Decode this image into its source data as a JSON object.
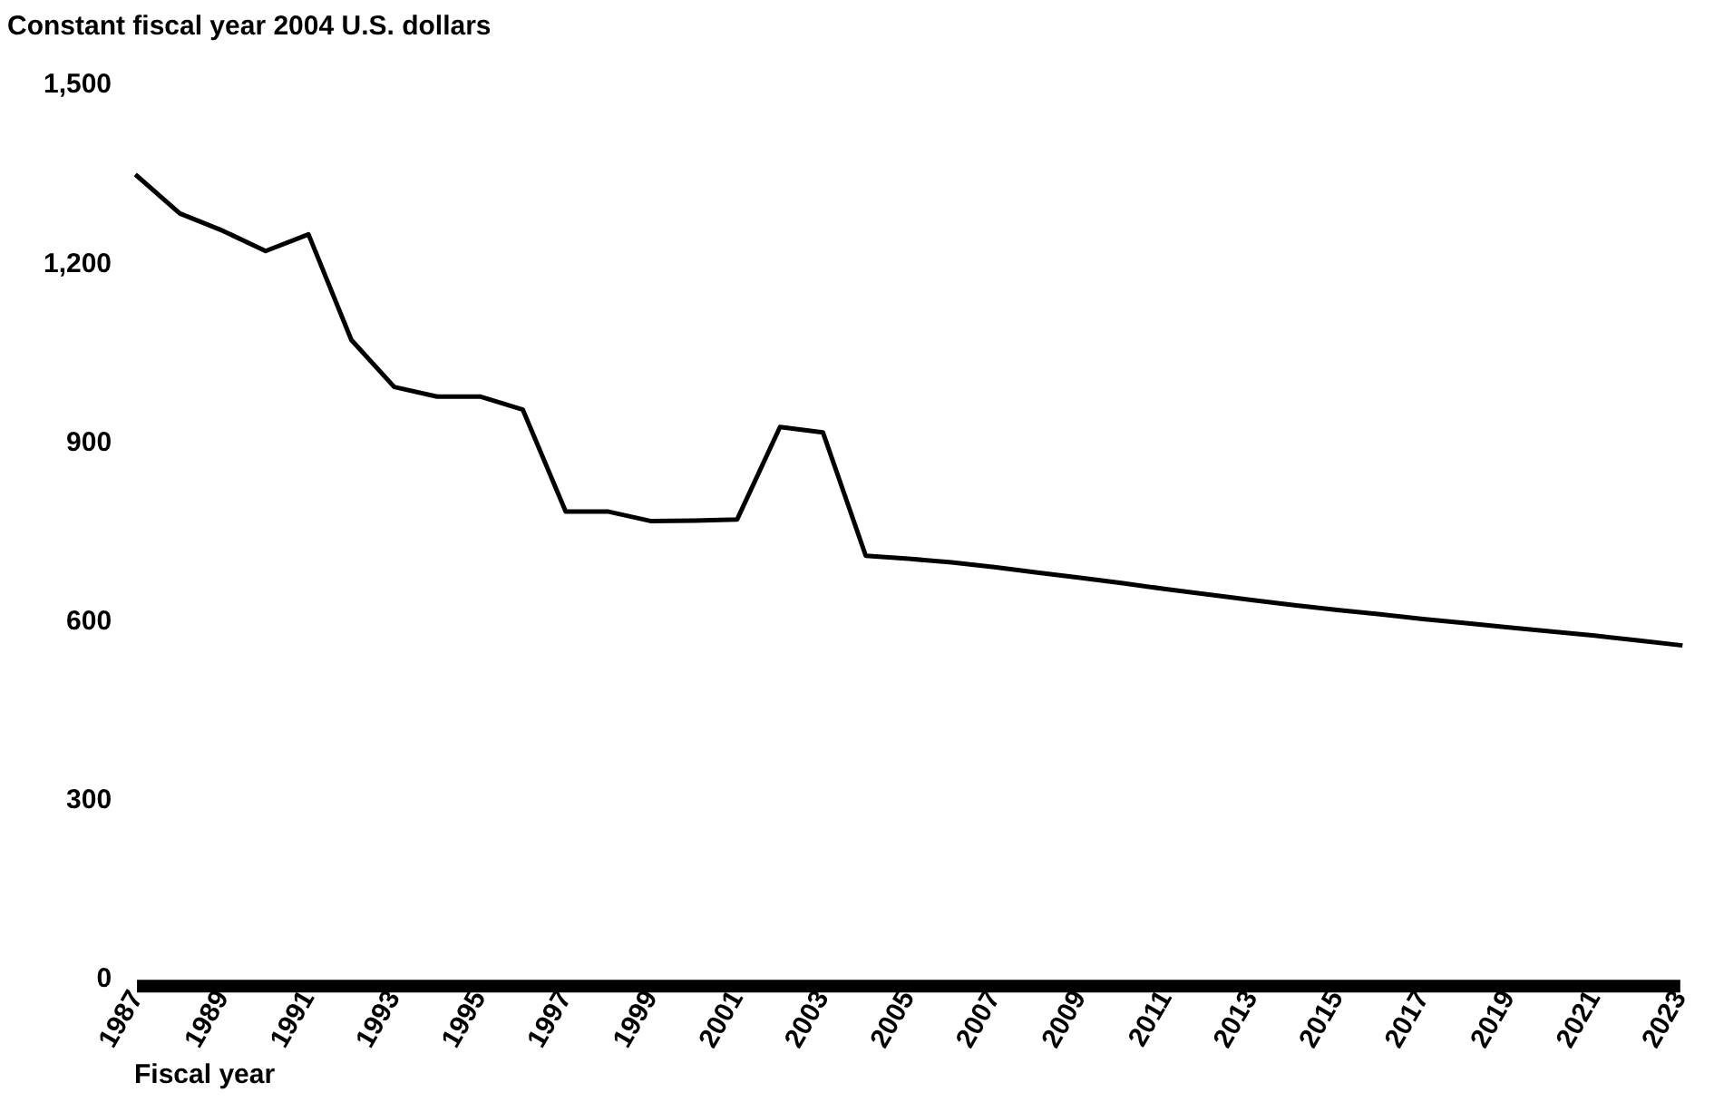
{
  "chart_data": {
    "type": "line",
    "ylabel": "Constant fiscal year 2004 U.S. dollars",
    "xlabel": "Fiscal year",
    "x": [
      1987,
      1988,
      1989,
      1990,
      1991,
      1992,
      1993,
      1994,
      1995,
      1996,
      1997,
      1998,
      1999,
      2000,
      2001,
      2002,
      2003,
      2004,
      2005,
      2006,
      2007,
      2008,
      2009,
      2010,
      2011,
      2012,
      2013,
      2014,
      2015,
      2016,
      2017,
      2018,
      2019,
      2020,
      2021,
      2022,
      2023
    ],
    "series": [
      {
        "color": "#000000",
        "values": [
          1348,
          1285,
          1256,
          1222,
          1250,
          1073,
          994,
          978,
          978,
          956,
          785,
          785,
          769,
          770,
          772,
          927,
          918,
          711,
          706,
          700,
          692,
          683,
          674,
          665,
          655,
          646,
          637,
          628,
          620,
          613,
          605,
          598,
          591,
          584,
          577,
          569,
          561
        ]
      }
    ],
    "xlim": [
      1987,
      2023
    ],
    "xticks": [
      1987,
      1989,
      1991,
      1993,
      1995,
      1997,
      1999,
      2001,
      2003,
      2005,
      2007,
      2009,
      2011,
      2013,
      2015,
      2017,
      2019,
      2021,
      2023
    ],
    "ylim": [
      0,
      1500
    ],
    "yticks": [
      0,
      300,
      600,
      900,
      {
        "value": 1200,
        "label": "1,200"
      },
      {
        "value": 1500,
        "label": "1,500"
      }
    ],
    "grid": false,
    "legend": false,
    "marker": "none",
    "line_style": "solid"
  }
}
